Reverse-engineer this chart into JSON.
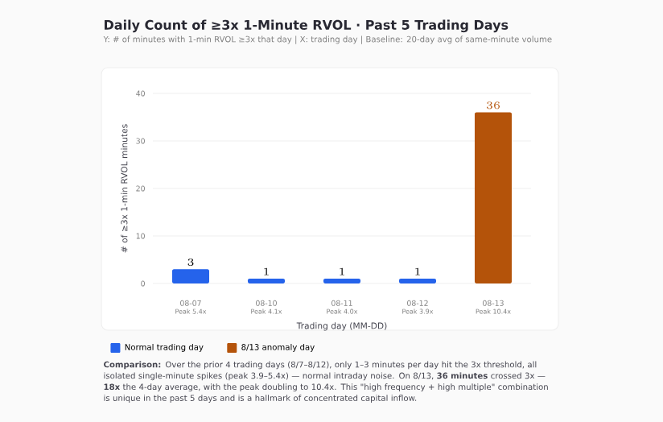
{
  "chart_data": {
    "type": "bar",
    "title": "Daily Count of ≥3x 1-Minute RVOL · Past 5 Trading Days",
    "subtitle": "Y: # of minutes with 1-min RVOL ≥3x that day  |  X: trading day  |  Baseline: 20-day avg of same-minute volume",
    "xlabel": "Trading day (MM-DD)",
    "ylabel": "# of ≥3x 1-min RVOL minutes",
    "categories": [
      "08-07",
      "08-10",
      "08-11",
      "08-12",
      "08-13"
    ],
    "series": [
      {
        "name": "Normal trading day",
        "color": "#2563eb",
        "values": [
          3,
          1,
          1,
          1,
          null
        ]
      },
      {
        "name": "8/13 anomaly day",
        "color": "#b4530a",
        "values": [
          null,
          null,
          null,
          null,
          36
        ]
      }
    ],
    "ylim": [
      0,
      40
    ],
    "yticks": [
      0,
      10,
      20,
      30,
      40
    ],
    "grid": "y",
    "legend": "bottom",
    "data_labels": true,
    "annotations": [
      "Peak 5.4x",
      "Peak 4.1x",
      "Peak 4.0x",
      "Peak 3.9x",
      "Peak 10.4x",
      "**Comparison:** Over the prior 4 trading days (8/7–8/12), only 1–3 minutes per day hit the 3x threshold, all isolated single-minute spikes (peak 3.9–5.4x) — normal intraday noise. On 8/13, **36 minutes** crossed 3x — **18x** the 4-day average, with the peak doubling to 10.4x. This \"high frequency + high multiple\" combination is unique in the past 5 days and is a hallmark of concentrated capital inflow."
    ]
  }
}
